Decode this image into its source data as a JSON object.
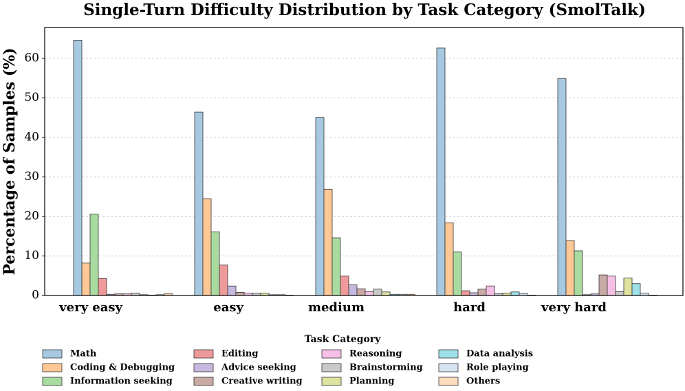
{
  "chart_data": {
    "type": "bar",
    "title": "Single-Turn Difficulty Distribution by Task Category (SmolTalk)",
    "y_label": "Percentage of Samples (%)",
    "legend_title": "Task Category",
    "categories": [
      "very easy",
      "easy",
      "medium",
      "hard",
      "very hard"
    ],
    "ylim": [
      0,
      67.8
    ],
    "yticks": [
      0,
      10,
      20,
      30,
      40,
      50,
      60
    ],
    "grid": true,
    "series": [
      {
        "name": "Math",
        "color": "#a6c8e0",
        "values": [
          64.6,
          46.4,
          45.1,
          62.6,
          54.9
        ]
      },
      {
        "name": "Coding & Debugging",
        "color": "#fdc896",
        "values": [
          8.2,
          24.5,
          26.9,
          18.4,
          13.9
        ]
      },
      {
        "name": "Information seeking",
        "color": "#a9dba0",
        "values": [
          20.6,
          16.1,
          14.6,
          11.0,
          11.3
        ]
      },
      {
        "name": "Editing",
        "color": "#ef9a9a",
        "values": [
          4.3,
          7.7,
          4.9,
          1.2,
          0.2
        ]
      },
      {
        "name": "Advice seeking",
        "color": "#c7b8e0",
        "values": [
          0.3,
          2.4,
          2.7,
          0.7,
          0.4
        ]
      },
      {
        "name": "Creative writing",
        "color": "#c9aaa4",
        "values": [
          0.4,
          0.8,
          1.7,
          1.6,
          5.2
        ]
      },
      {
        "name": "Reasoning",
        "color": "#f6c0e6",
        "values": [
          0.4,
          0.6,
          1.0,
          2.4,
          4.9
        ]
      },
      {
        "name": "Brainstorming",
        "color": "#c9c9c9",
        "values": [
          0.6,
          0.6,
          1.6,
          0.5,
          1.0
        ]
      },
      {
        "name": "Planning",
        "color": "#dfe3a0",
        "values": [
          0.2,
          0.6,
          0.9,
          0.6,
          4.4
        ]
      },
      {
        "name": "Data analysis",
        "color": "#9ee0ea",
        "values": [
          0.1,
          0.2,
          0.3,
          0.9,
          3.0
        ]
      },
      {
        "name": "Role playing",
        "color": "#d6e3f2",
        "values": [
          0.2,
          0.2,
          0.3,
          0.5,
          0.6
        ]
      },
      {
        "name": "Others",
        "color": "#fddcbc",
        "values": [
          0.4,
          0.1,
          0.3,
          0.1,
          0.1
        ]
      }
    ]
  }
}
